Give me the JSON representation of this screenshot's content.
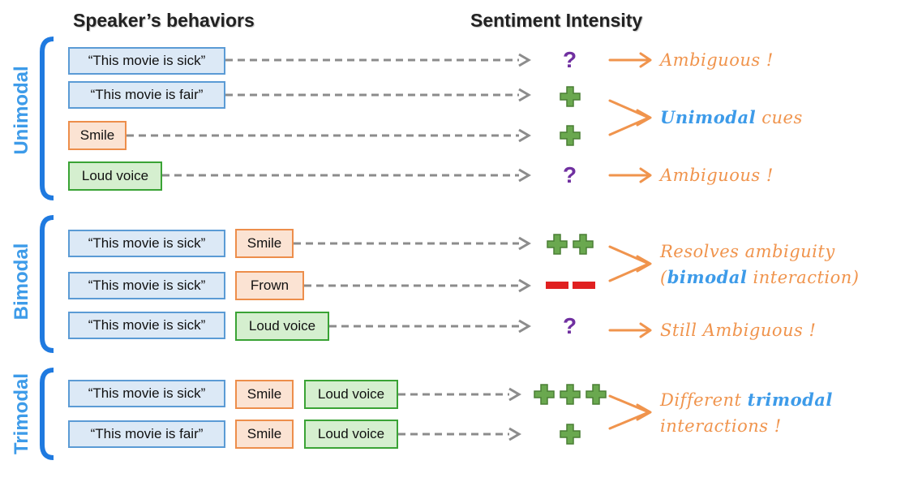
{
  "headers": {
    "behaviors": "Speaker’s behaviors",
    "sentiment": "Sentiment Intensity"
  },
  "groups": {
    "unimodal": "Unimodal",
    "bimodal": "Bimodal",
    "trimodal": "Trimodal"
  },
  "boxes": {
    "sick": "“This movie is sick”",
    "fair": "“This movie is fair”",
    "smile": "Smile",
    "frown": "Frown",
    "loud_voice": "Loud voice"
  },
  "symbols": {
    "question": "?",
    "plus_color": "#6aa84f",
    "minus_color": "#e02020",
    "question_color": "#7030a0",
    "arrow_color": "#f0944d",
    "dash_color": "#8c8c8c"
  },
  "outcomes": {
    "ambiguous": "Ambiguous !",
    "unimodal_hl": "Unimodal",
    "unimodal_rest": " cues",
    "resolves_line1": "Resolves ambiguity",
    "resolves_open": "(",
    "resolves_hl": "bimodal",
    "resolves_rest": " interaction)",
    "still_ambiguous": "Still Ambiguous !",
    "different": "Different ",
    "trimodal_hl": "trimodal",
    "interactions": "interactions !"
  }
}
